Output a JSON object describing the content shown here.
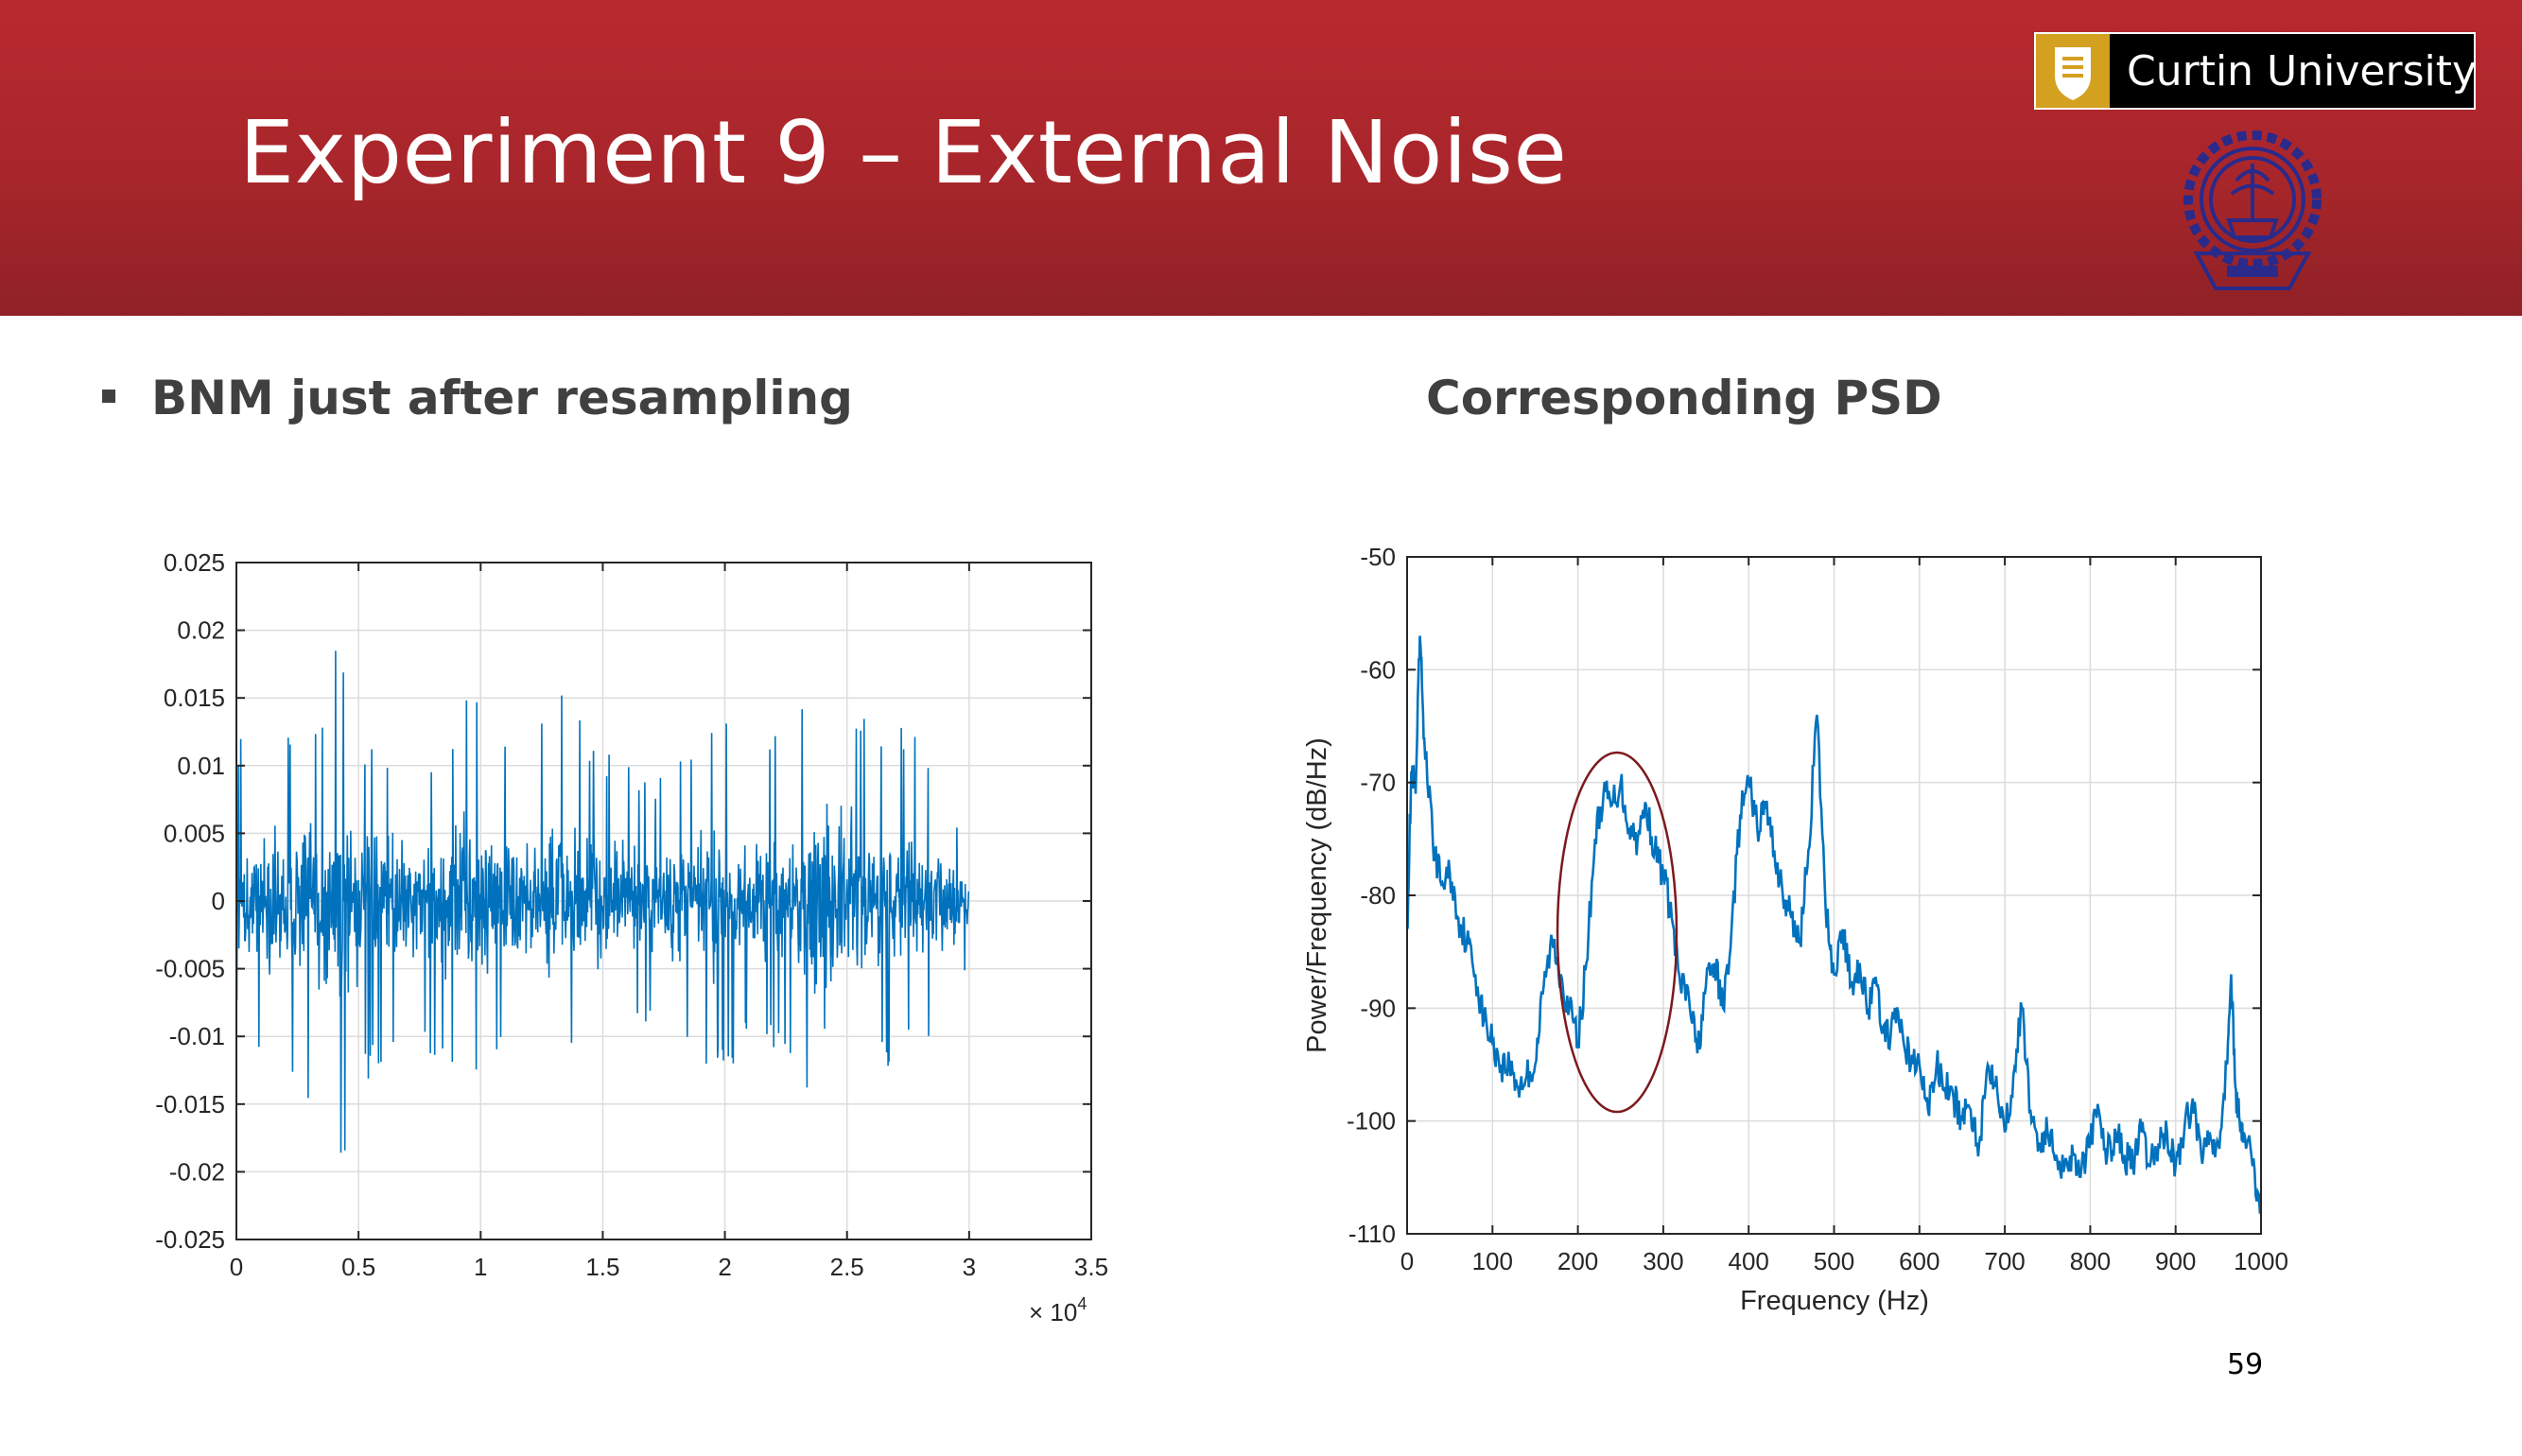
{
  "slide": {
    "title": "Experiment 9 – External Noise",
    "logo_text": "Curtin University",
    "left_heading": "BNM just after resampling",
    "right_heading": "Corresponding PSD",
    "page_number": "59",
    "colors": {
      "header": "#b8292f",
      "series": "#0072bd",
      "annotation": "#7b1a1f"
    }
  },
  "chart_data": [
    {
      "type": "line",
      "title": "",
      "xlabel": "",
      "ylabel": "",
      "x_multiplier_label": "× 10",
      "x_multiplier_exp": "4",
      "xlim": [
        0,
        3.5
      ],
      "ylim": [
        -0.025,
        0.025
      ],
      "xticks": [
        0,
        0.5,
        1,
        1.5,
        2,
        2.5,
        3,
        3.5
      ],
      "xtick_labels": [
        "0",
        "0.5",
        "1",
        "1.5",
        "2",
        "2.5",
        "3",
        "3.5"
      ],
      "yticks": [
        0.025,
        0.02,
        0.015,
        0.01,
        0.005,
        0,
        -0.005,
        -0.01,
        -0.015,
        -0.02,
        -0.025
      ],
      "ytick_labels": [
        "0.025",
        "0.02",
        "0.015",
        "0.01",
        "0.005",
        "0",
        "-0.005",
        "-0.01",
        "-0.015",
        "-0.02",
        "-0.025"
      ],
      "grid": true,
      "series": [
        {
          "description_x_range": [
            0,
            3.0
          ],
          "envelope_x": [
            0,
            0.2,
            0.35,
            0.42,
            0.5,
            0.7,
            0.85,
            0.95,
            1.2,
            1.3,
            1.45,
            1.7,
            2.0,
            2.1,
            2.3,
            2.4,
            2.6,
            2.8,
            3.0
          ],
          "envelope_max": [
            0.012,
            0.013,
            0.015,
            0.0215,
            0.012,
            0.01,
            0.011,
            0.0155,
            0.01,
            0.0178,
            0.012,
            0.009,
            0.0135,
            0.01,
            0.015,
            0.0152,
            0.0142,
            0.012,
            0.004
          ],
          "envelope_min": [
            -0.009,
            -0.014,
            -0.016,
            -0.0215,
            -0.014,
            -0.01,
            -0.0135,
            -0.013,
            -0.01,
            -0.014,
            -0.012,
            -0.009,
            -0.0135,
            -0.01,
            -0.012,
            -0.021,
            -0.0135,
            -0.011,
            -0.005
          ]
        }
      ]
    },
    {
      "type": "line",
      "title": "",
      "xlabel": "Frequency (Hz)",
      "ylabel": "Power/Frequency (dB/Hz)",
      "xlim": [
        0,
        1000
      ],
      "ylim": [
        -110,
        -50
      ],
      "xticks": [
        0,
        100,
        200,
        300,
        400,
        500,
        600,
        700,
        800,
        900,
        1000
      ],
      "xtick_labels": [
        "0",
        "100",
        "200",
        "300",
        "400",
        "500",
        "600",
        "700",
        "800",
        "900",
        "1000"
      ],
      "yticks": [
        -50,
        -60,
        -70,
        -80,
        -90,
        -100,
        -110
      ],
      "ytick_labels": [
        "-50",
        "-60",
        "-70",
        "-80",
        "-90",
        "-100",
        "-110"
      ],
      "grid": true,
      "series": [
        {
          "x": [
            0,
            5,
            10,
            15,
            20,
            30,
            40,
            50,
            60,
            70,
            80,
            90,
            100,
            110,
            120,
            130,
            140,
            150,
            160,
            170,
            180,
            190,
            200,
            210,
            220,
            230,
            240,
            250,
            260,
            270,
            280,
            290,
            300,
            310,
            320,
            330,
            340,
            350,
            360,
            370,
            380,
            390,
            400,
            410,
            420,
            430,
            440,
            450,
            460,
            470,
            480,
            490,
            500,
            510,
            520,
            530,
            540,
            550,
            560,
            570,
            580,
            590,
            600,
            610,
            620,
            630,
            640,
            650,
            660,
            670,
            680,
            690,
            700,
            710,
            720,
            730,
            740,
            750,
            760,
            770,
            780,
            790,
            800,
            810,
            820,
            830,
            840,
            850,
            860,
            870,
            880,
            890,
            900,
            910,
            920,
            930,
            940,
            950,
            960,
            965,
            970,
            975,
            980,
            990,
            1000
          ],
          "y": [
            -83,
            -69,
            -71,
            -57,
            -66,
            -75,
            -79,
            -78,
            -82,
            -84,
            -87,
            -91,
            -93,
            -95,
            -95,
            -97,
            -96,
            -95,
            -88,
            -84,
            -87,
            -90,
            -93,
            -86,
            -75,
            -71,
            -72,
            -70,
            -74,
            -75,
            -72,
            -76,
            -78,
            -82,
            -88,
            -89,
            -94,
            -88,
            -86,
            -90,
            -83,
            -73,
            -70,
            -74,
            -72,
            -76,
            -80,
            -82,
            -84,
            -76,
            -64,
            -81,
            -87,
            -83,
            -88,
            -86,
            -90,
            -88,
            -93,
            -91,
            -92,
            -95,
            -95,
            -99,
            -95,
            -97,
            -98,
            -100,
            -99,
            -102,
            -95,
            -96,
            -101,
            -96,
            -90,
            -99,
            -102,
            -101,
            -103,
            -104,
            -103,
            -104,
            -102,
            -99,
            -103,
            -101,
            -103,
            -104,
            -101,
            -104,
            -102,
            -101,
            -104,
            -101,
            -98,
            -103,
            -101,
            -102,
            -95,
            -87,
            -97,
            -100,
            -101,
            -104,
            -108
          ]
        }
      ]
    }
  ]
}
